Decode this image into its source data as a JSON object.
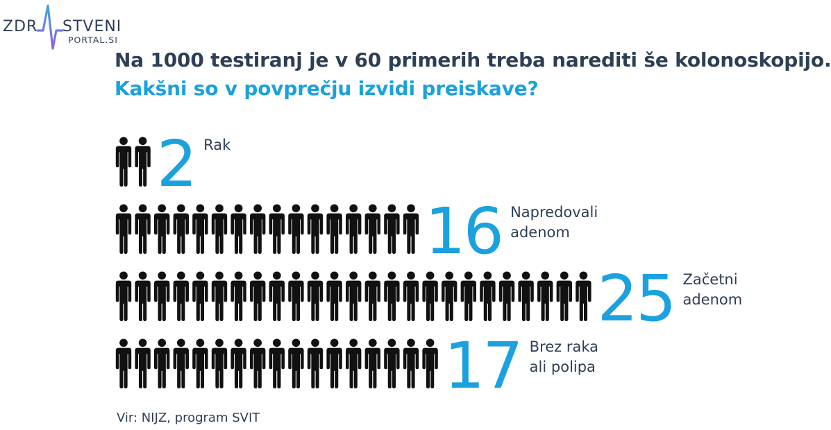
{
  "logo": {
    "text_left": "ZDR",
    "text_right": "STVENI",
    "text_sub": "PORTAL.SI",
    "gradient": [
      "#3aa8e0",
      "#9b5de5"
    ]
  },
  "title_line1": "Na 1000 testiranj je v 60 primerih treba narediti še kolonoskopijo.",
  "title_line2": "Kakšni so v povprečju izvidi preiskave?",
  "source": "Vir: NIJZ, program SVIT",
  "colors": {
    "dark": "#2d3e55",
    "accent": "#1ba1dd",
    "icon": "#111111"
  },
  "icon": "person-icon",
  "chart_data": {
    "type": "pictogram",
    "unit_icon": "person",
    "categories": [
      {
        "value": 2,
        "value_label": "2",
        "label_lines": [
          "Rak"
        ]
      },
      {
        "value": 16,
        "value_label": "16",
        "label_lines": [
          "Napredovali",
          "adenom"
        ]
      },
      {
        "value": 25,
        "value_label": "25",
        "label_lines": [
          "Začetni",
          "adenom"
        ]
      },
      {
        "value": 17,
        "value_label": "17",
        "label_lines": [
          "Brez raka",
          "ali polipa"
        ]
      }
    ]
  }
}
